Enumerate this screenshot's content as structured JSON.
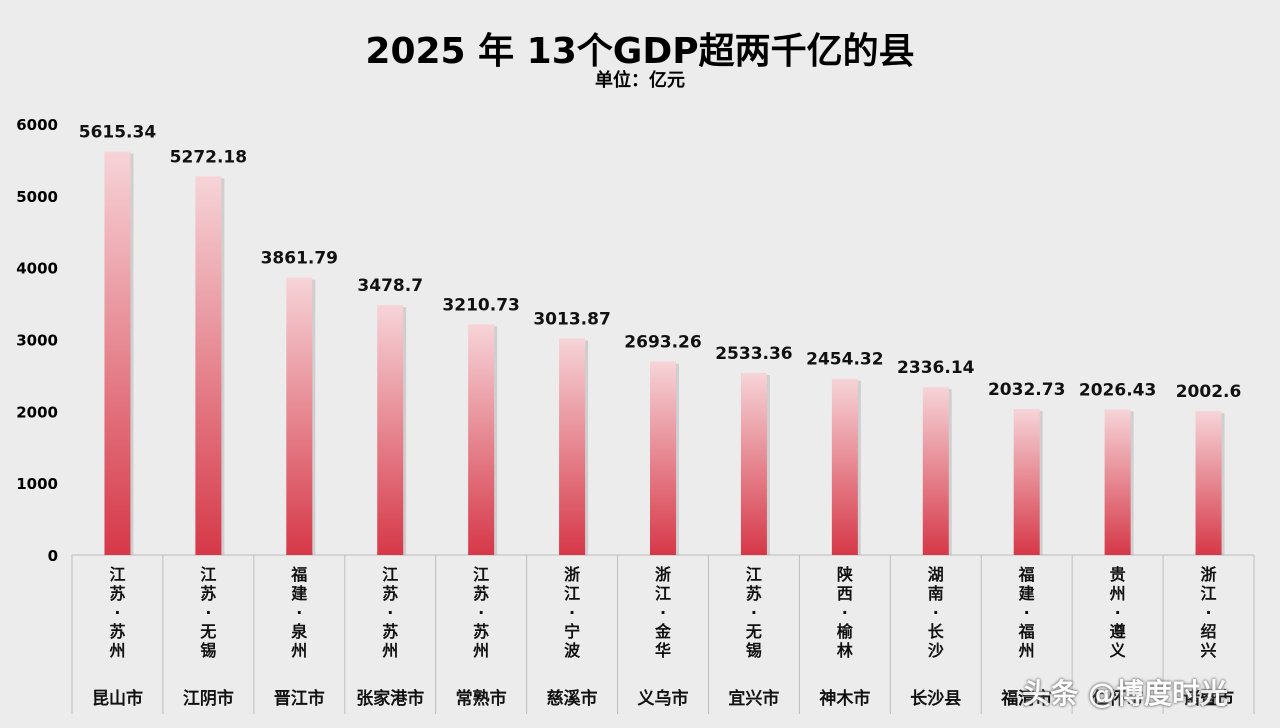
{
  "chart_data": {
    "type": "bar",
    "title": "2025 年 13个GDP超两千亿的县",
    "subtitle": "单位：亿元",
    "ylim": [
      0,
      6000
    ],
    "yticks": [
      0,
      1000,
      2000,
      3000,
      4000,
      5000,
      6000
    ],
    "categories": [
      {
        "province": "江苏·苏州",
        "name": "昆山市"
      },
      {
        "province": "江苏·无锡",
        "name": "江阴市"
      },
      {
        "province": "福建·泉州",
        "name": "晋江市"
      },
      {
        "province": "江苏·苏州",
        "name": "张家港市"
      },
      {
        "province": "江苏·苏州",
        "name": "常熟市"
      },
      {
        "province": "浙江·宁波",
        "name": "慈溪市"
      },
      {
        "province": "浙江·金华",
        "name": "义乌市"
      },
      {
        "province": "江苏·无锡",
        "name": "宜兴市"
      },
      {
        "province": "陕西·榆林",
        "name": "神木市"
      },
      {
        "province": "湖南·长沙",
        "name": "长沙县"
      },
      {
        "province": "福建·福州",
        "name": "福清市"
      },
      {
        "province": "贵州·遵义",
        "name": "仁怀市"
      },
      {
        "province": "浙江·绍兴",
        "name": "诸暨市"
      }
    ],
    "values": [
      5615.34,
      5272.18,
      3861.79,
      3478.7,
      3210.73,
      3013.87,
      2693.26,
      2533.36,
      2454.32,
      2336.14,
      2032.73,
      2026.43,
      2002.6
    ],
    "value_labels": [
      "5615.34",
      "5272.18",
      "3861.79",
      "3478.7",
      "3210.73",
      "3013.87",
      "2693.26",
      "2533.36",
      "2454.32",
      "2336.14",
      "2032.73",
      "2026.43",
      "2002.6"
    ],
    "bar_color_top": "#f6d4d8",
    "bar_color_bottom": "#d63848",
    "grid": false
  },
  "watermark": "头条 @博度时光"
}
